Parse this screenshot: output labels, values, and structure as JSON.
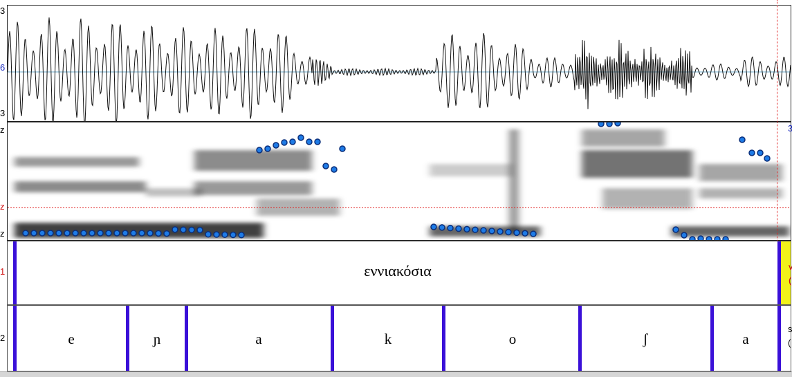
{
  "axes": {
    "wave_top": "3",
    "wave_mid": "6",
    "wave_bottom": "3",
    "spec_top": "z",
    "spec_mid": "z",
    "spec_bottom": "z",
    "tier1_number": "1",
    "tier2_number": "2",
    "right_spec_top": "3",
    "right_tier1_a": "v",
    "right_tier1_b": "(",
    "right_tier2_a": "s",
    "right_tier2_b": "("
  },
  "tiers": {
    "word": {
      "text": "εννιακόσια"
    },
    "segments": [
      {
        "label": "e"
      },
      {
        "label": "ɲ"
      },
      {
        "label": "a"
      },
      {
        "label": "k"
      },
      {
        "label": "o"
      },
      {
        "label": "ʃ"
      },
      {
        "label": "a"
      }
    ]
  },
  "colors": {
    "boundary": "#3a10d8",
    "formant_dot": "#1e7be6",
    "cursor": "#e02020",
    "selection": "#f2f21a"
  }
}
